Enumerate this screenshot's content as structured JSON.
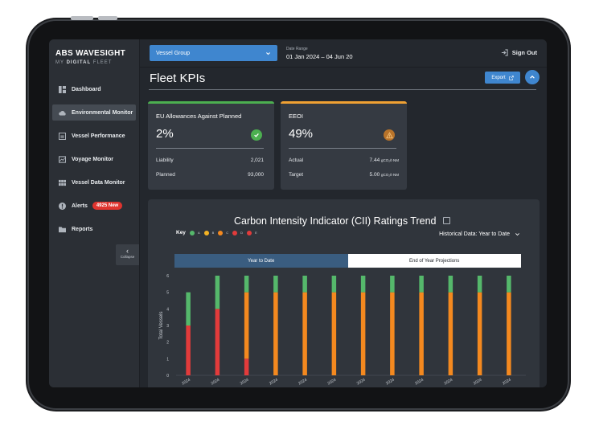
{
  "brand": {
    "logo_text": "ABS WAVESIGHT",
    "logo_sub_prefix": "MY ",
    "logo_sub_bold": "DIGITAL",
    "logo_sub_suffix": " FLEET"
  },
  "sidebar": {
    "items": [
      {
        "label": "Dashboard",
        "icon": "dashboard-icon",
        "active": false
      },
      {
        "label": "Environmental Monitor",
        "icon": "cloud-icon",
        "active": true
      },
      {
        "label": "Vessel Performance",
        "icon": "performance-icon",
        "active": false
      },
      {
        "label": "Voyage Monitor",
        "icon": "voyage-icon",
        "active": false
      },
      {
        "label": "Vessel Data Monitor",
        "icon": "data-grid-icon",
        "active": false
      },
      {
        "label": "Alerts",
        "icon": "alert-icon",
        "active": false,
        "badge": "4925 New"
      },
      {
        "label": "Reports",
        "icon": "folder-icon",
        "active": false
      }
    ],
    "collapse_label": "Collapse"
  },
  "topbar": {
    "vessel_select": "Vessel Group",
    "date_label": "Date Range",
    "date_value": "01 Jan 2024 – 04 Jun 20",
    "sign_out": "Sign Out"
  },
  "page": {
    "title": "Fleet KPIs",
    "export_label": "Export"
  },
  "kpis": [
    {
      "title": "EU Allowances Against Planned",
      "value": "2%",
      "accent": "#4caf50",
      "status": "check",
      "rows": [
        {
          "label": "Liability",
          "value": "2,021",
          "unit": ""
        },
        {
          "label": "Planned",
          "value": "93,000",
          "unit": ""
        }
      ]
    },
    {
      "title": "EEOI",
      "value": "49%",
      "accent": "#f0a133",
      "status": "warning",
      "rows": [
        {
          "label": "Actual",
          "value": "7.44",
          "unit": "gCO₂/t·NM"
        },
        {
          "label": "Target",
          "value": "5.00",
          "unit": "gCO₂/t·NM"
        }
      ]
    }
  ],
  "chart": {
    "title": "Carbon Intensity Indicator (CII) Ratings Trend",
    "key_label": "Key",
    "historical_label": "Historical Data: Year to Date",
    "tabs": [
      {
        "label": "Year to Date",
        "active": true
      },
      {
        "label": "End of Year Projections",
        "active": false
      }
    ]
  },
  "chart_data": {
    "type": "bar",
    "stacked": true,
    "ylabel": "Total Vessels",
    "ylim": [
      0,
      6
    ],
    "yticks": [
      "0",
      "1",
      "2",
      "3",
      "4",
      "5",
      "6"
    ],
    "categories": [
      "2024",
      "2024",
      "2024",
      "2024",
      "2024",
      "2024",
      "2024",
      "2024",
      "2024",
      "2024",
      "2024",
      "2024"
    ],
    "series": [
      {
        "name": "E",
        "color": "#e23b3b",
        "values": [
          3,
          4,
          1,
          0,
          0,
          0,
          0,
          0,
          0,
          0,
          0,
          0
        ]
      },
      {
        "name": "D",
        "color": "#ee5b28",
        "values": [
          0,
          0,
          0,
          0,
          0,
          0,
          0,
          0,
          0,
          0,
          0,
          0
        ]
      },
      {
        "name": "C",
        "color": "#f4891f",
        "values": [
          0,
          0,
          4,
          5,
          5,
          5,
          5,
          5,
          5,
          5,
          5,
          5
        ]
      },
      {
        "name": "B",
        "color": "#f4b324",
        "values": [
          0,
          0,
          0,
          0,
          0,
          0,
          0,
          0,
          0,
          0,
          0,
          0
        ]
      },
      {
        "name": "A",
        "color": "#55b86b",
        "values": [
          2,
          2,
          1,
          1,
          1,
          1,
          1,
          1,
          1,
          1,
          1,
          1
        ]
      }
    ],
    "key_colors": [
      "#55b86b",
      "#f4b324",
      "#f4891f",
      "#e23b3b",
      "#e23b3b"
    ]
  }
}
